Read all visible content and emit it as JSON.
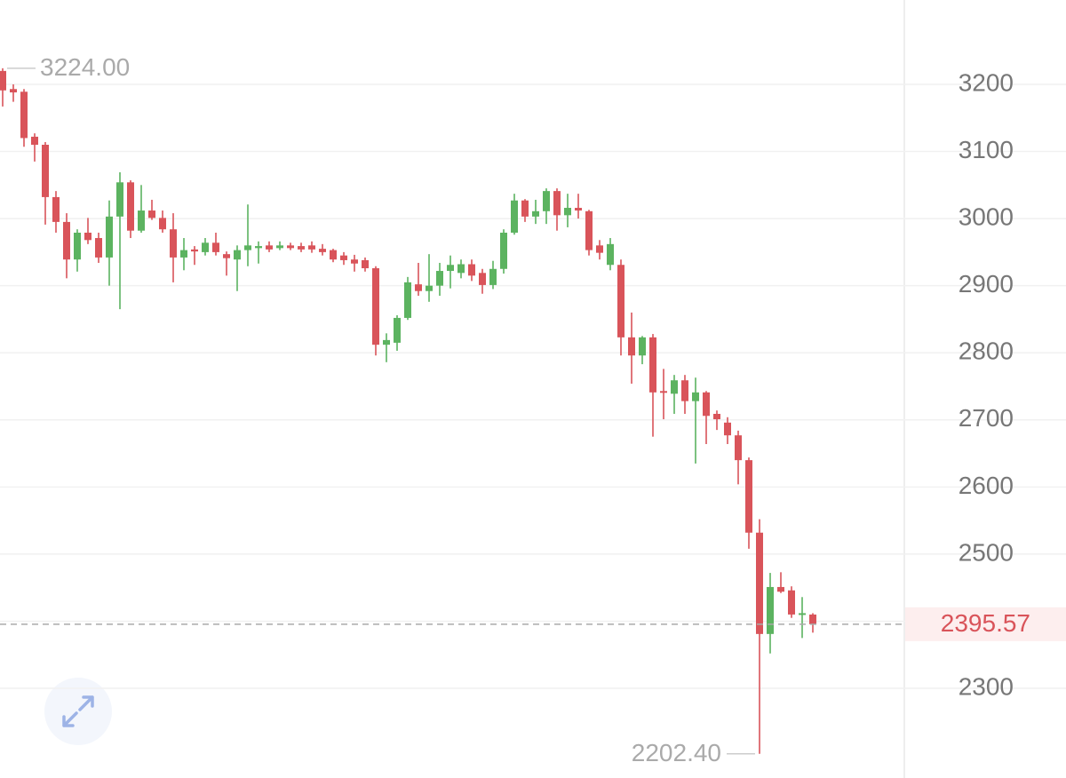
{
  "chart_data": {
    "type": "candlestick",
    "ylim": [
      2166.4,
      3325.7
    ],
    "yticks": [
      2300,
      2400,
      2500,
      2600,
      2700,
      2800,
      2900,
      3000,
      3100,
      3200
    ],
    "grid": true,
    "up_color": "#5cb360",
    "down_color": "#d9545a",
    "open": [
      3220,
      3193,
      3189,
      3122,
      3110,
      3032,
      2995,
      2939,
      2979,
      2971,
      2942,
      3003,
      3054,
      2982,
      3012,
      3001,
      2984,
      2942,
      2954,
      2950,
      2964,
      2947,
      2939,
      2953,
      2956,
      2960,
      2956,
      2960,
      2959,
      2960,
      2955,
      2953,
      2945,
      2939,
      2938,
      2926,
      2812,
      2815,
      2852,
      2902,
      2892,
      2900,
      2922,
      2919,
      2932,
      2919,
      2901,
      2925,
      2979,
      3027,
      3003,
      3011,
      3041,
      3005,
      3016,
      3011,
      2960,
      2931,
      2931,
      2823,
      2796,
      2823,
      2743,
      2739,
      2759,
      2728,
      2741,
      2709,
      2696,
      2677,
      2640,
      2532,
      2381,
      2451,
      2446,
      2410,
      2410
    ],
    "high": [
      3224,
      3200,
      3193,
      3127,
      3114,
      3041,
      3008,
      2984,
      3001,
      2979,
      3027,
      3069,
      3057,
      3050,
      3028,
      3012,
      3008,
      2971,
      2959,
      2971,
      2979,
      2951,
      2960,
      3021,
      2966,
      2966,
      2966,
      2964,
      2964,
      2966,
      2962,
      2955,
      2950,
      2946,
      2942,
      2929,
      2829,
      2856,
      2913,
      2934,
      2947,
      2934,
      2945,
      2939,
      2939,
      2925,
      2937,
      2984,
      3037,
      3029,
      3028,
      3045,
      3045,
      3037,
      3037,
      3013,
      2968,
      2971,
      2939,
      2860,
      2825,
      2828,
      2776,
      2767,
      2767,
      2763,
      2743,
      2714,
      2704,
      2684,
      2644,
      2552,
      2472,
      2473,
      2452,
      2436,
      2412
    ],
    "low": [
      3167,
      3174,
      3107,
      3085,
      2991,
      2979,
      2911,
      2921,
      2962,
      2934,
      2900,
      2865,
      2971,
      2979,
      2998,
      2979,
      2905,
      2923,
      2931,
      2945,
      2945,
      2915,
      2892,
      2929,
      2933,
      2950,
      2953,
      2953,
      2950,
      2949,
      2945,
      2935,
      2931,
      2921,
      2921,
      2796,
      2786,
      2803,
      2849,
      2885,
      2876,
      2885,
      2896,
      2911,
      2907,
      2888,
      2895,
      2918,
      2976,
      2995,
      2992,
      2992,
      2982,
      2987,
      3000,
      2945,
      2939,
      2923,
      2796,
      2754,
      2783,
      2675,
      2701,
      2709,
      2709,
      2635,
      2664,
      2685,
      2664,
      2604,
      2508,
      2202.4,
      2352,
      2442,
      2405,
      2375,
      2383
    ],
    "close": [
      3191,
      3188,
      3120,
      3110,
      3032,
      2995,
      2939,
      2979,
      2968,
      2942,
      3003,
      3054,
      2982,
      3012,
      3001,
      2984,
      2942,
      2953,
      2951,
      2964,
      2950,
      2941,
      2953,
      2960,
      2959,
      2954,
      2960,
      2956,
      2954,
      2954,
      2950,
      2939,
      2938,
      2933,
      2926,
      2812,
      2819,
      2852,
      2905,
      2892,
      2900,
      2922,
      2931,
      2932,
      2915,
      2901,
      2925,
      2979,
      3027,
      3003,
      3011,
      3041,
      3005,
      3016,
      3012,
      2953,
      2949,
      2962,
      2823,
      2796,
      2823,
      2741,
      2741,
      2759,
      2728,
      2741,
      2706,
      2701,
      2677,
      2640,
      2532,
      2381,
      2451,
      2444,
      2410,
      2412,
      2395.57
    ],
    "annotations": [
      {
        "value": 3224,
        "label": "3224.00"
      },
      {
        "value": 2202.4,
        "label": "2202.40"
      }
    ],
    "last_price": {
      "value": 2395.57,
      "label": "2395.57"
    }
  }
}
